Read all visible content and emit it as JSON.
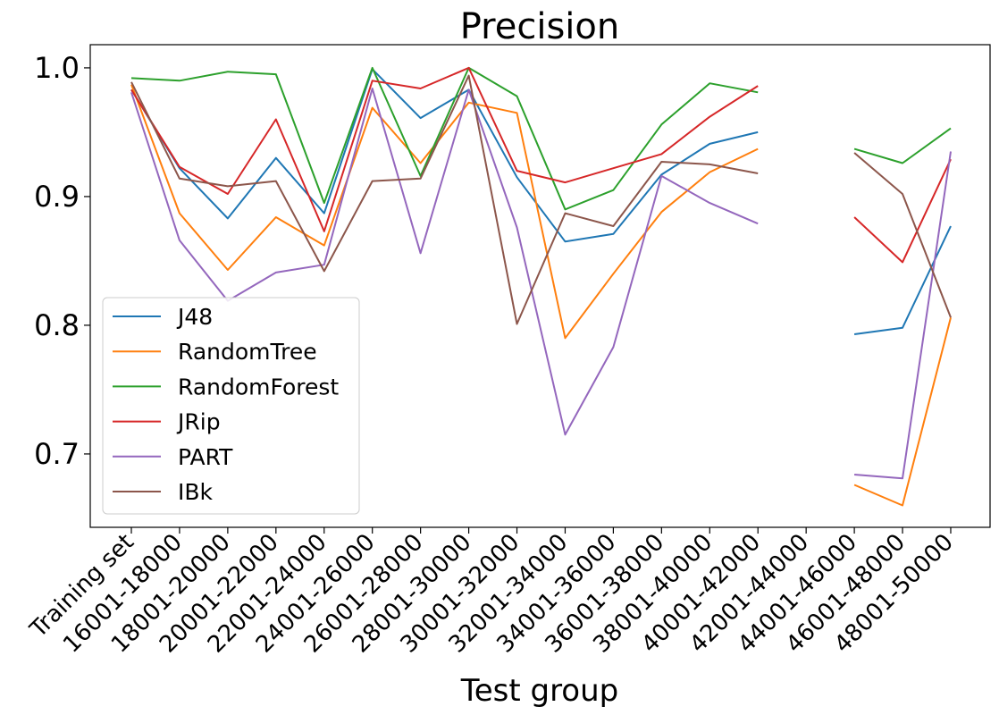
{
  "chart_data": {
    "type": "line",
    "title": "Precision",
    "xlabel": "Test group",
    "ylabel": "",
    "categories": [
      "Training set",
      "16001-18000",
      "18001-20000",
      "20001-22000",
      "22001-24000",
      "24001-26000",
      "26001-28000",
      "28001-30000",
      "30001-32000",
      "32001-34000",
      "34001-36000",
      "36001-38000",
      "38001-40000",
      "40001-42000",
      "42001-44000",
      "44001-46000",
      "46001-48000",
      "48001-50000"
    ],
    "ylim": [
      0.643,
      1.018
    ],
    "yticks": [
      {
        "value": 0.7,
        "label": "0.7"
      },
      {
        "value": 0.8,
        "label": "0.8"
      },
      {
        "value": 0.9,
        "label": "0.9"
      },
      {
        "value": 1.0,
        "label": "1.0"
      }
    ],
    "grid": false,
    "legend_position": "lower-left",
    "series": [
      {
        "name": "J48",
        "color": "#1f77b4",
        "values": [
          0.983,
          0.922,
          0.883,
          0.93,
          0.887,
          0.999,
          0.961,
          0.983,
          0.915,
          0.865,
          0.871,
          0.917,
          0.941,
          0.95,
          null,
          0.793,
          0.798,
          0.877
        ]
      },
      {
        "name": "RandomTree",
        "color": "#ff7f0e",
        "values": [
          0.987,
          0.887,
          0.843,
          0.884,
          0.862,
          0.969,
          0.926,
          0.973,
          0.965,
          0.79,
          0.84,
          0.888,
          0.919,
          0.937,
          null,
          0.676,
          0.66,
          0.806
        ]
      },
      {
        "name": "RandomForest",
        "color": "#2ca02c",
        "values": [
          0.992,
          0.99,
          0.997,
          0.995,
          0.895,
          1.0,
          0.916,
          1.0,
          0.978,
          0.89,
          0.905,
          0.956,
          0.988,
          0.981,
          null,
          0.937,
          0.926,
          0.953
        ]
      },
      {
        "name": "JRip",
        "color": "#d62728",
        "values": [
          0.983,
          0.923,
          0.902,
          0.96,
          0.873,
          0.99,
          0.984,
          1.0,
          0.92,
          0.911,
          0.922,
          0.933,
          0.962,
          0.986,
          null,
          0.884,
          0.849,
          0.929
        ]
      },
      {
        "name": "PART",
        "color": "#9467bd",
        "values": [
          0.981,
          0.866,
          0.819,
          0.841,
          0.847,
          0.984,
          0.856,
          0.983,
          0.876,
          0.715,
          0.783,
          0.916,
          0.895,
          0.879,
          null,
          0.684,
          0.681,
          0.935
        ]
      },
      {
        "name": "IBk",
        "color": "#8c564b",
        "values": [
          0.989,
          0.914,
          0.908,
          0.912,
          0.842,
          0.912,
          0.914,
          0.994,
          0.801,
          0.887,
          0.877,
          0.927,
          0.925,
          0.918,
          null,
          0.934,
          0.902,
          0.806
        ]
      }
    ]
  }
}
